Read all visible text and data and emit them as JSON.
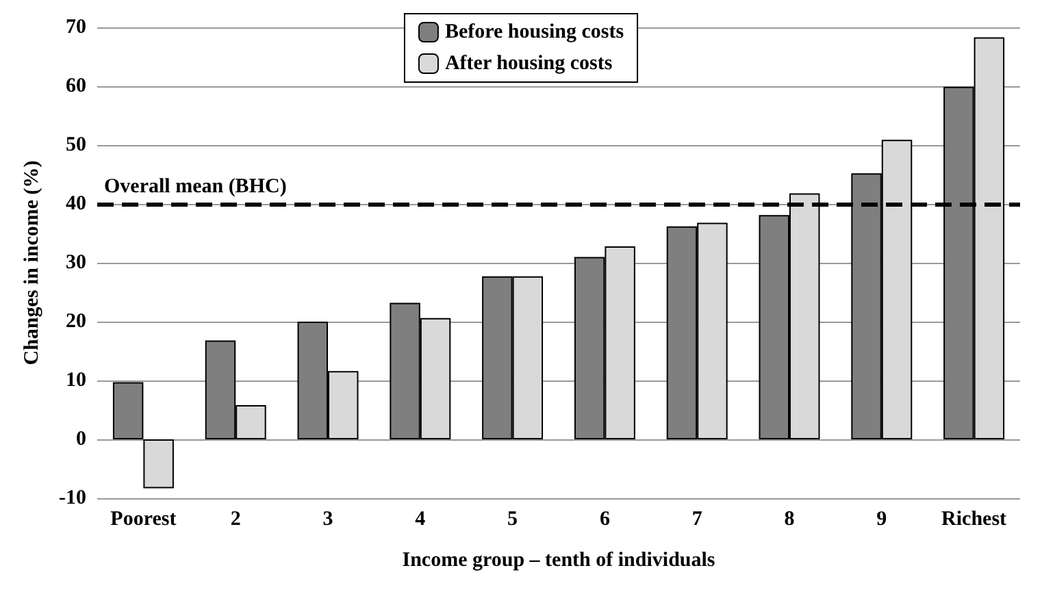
{
  "chart_data": {
    "type": "bar",
    "xlabel": "Income group – tenth of individuals",
    "ylabel": "Changes in income (%)",
    "categories": [
      "Poorest",
      "2",
      "3",
      "4",
      "5",
      "6",
      "7",
      "8",
      "9",
      "Richest"
    ],
    "series": [
      {
        "name": "Before housing costs",
        "color": "#7f7f7f",
        "values": [
          9.7,
          16.8,
          20.0,
          23.2,
          27.7,
          31.0,
          36.2,
          38.1,
          45.2,
          59.9
        ]
      },
      {
        "name": "After housing costs",
        "color": "#d9d9d9",
        "values": [
          -8.3,
          5.8,
          11.6,
          20.6,
          27.7,
          32.8,
          36.8,
          41.8,
          50.9,
          68.3
        ]
      }
    ],
    "ylim": [
      -10,
      70
    ],
    "yticks": [
      -10,
      0,
      10,
      20,
      30,
      40,
      50,
      60,
      70
    ],
    "grid": "y",
    "legend": "top",
    "ref_lines": [
      {
        "axis": "y",
        "value": 40,
        "label": "Overall mean (BHC)",
        "color": "#000000",
        "line_style": "dashed"
      }
    ]
  }
}
